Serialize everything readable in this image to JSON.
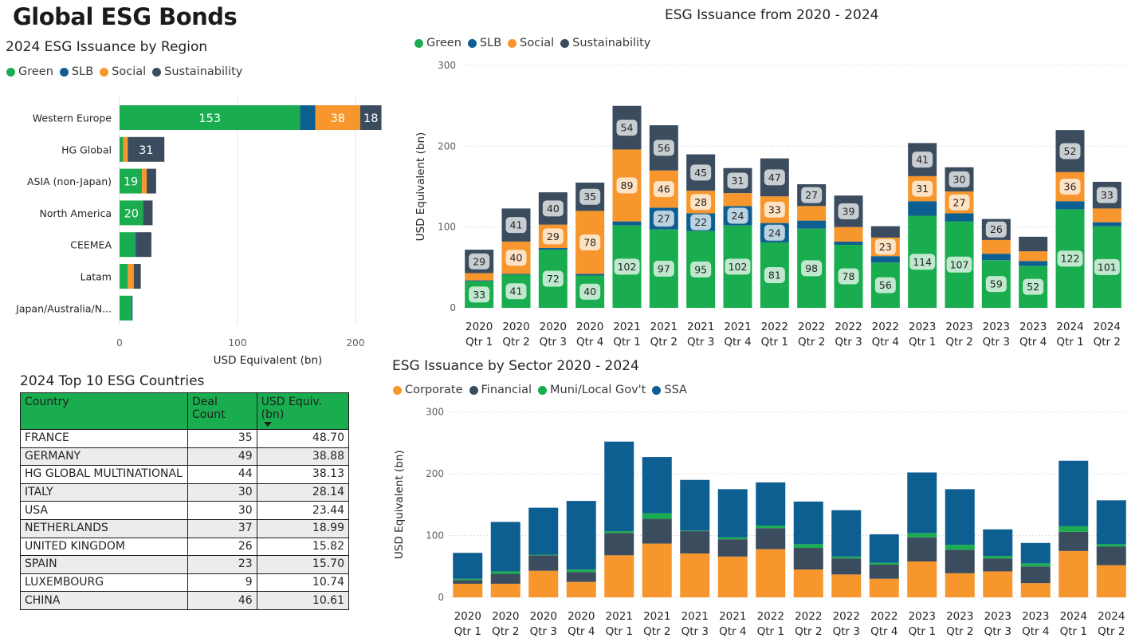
{
  "page": {
    "title": "Global ESG Bonds"
  },
  "colors": {
    "green": "#1aad4f",
    "slb": "#0e5f91",
    "social": "#f7962c",
    "sustainability": "#3b4c5f",
    "ssa": "#0e5f91",
    "financial": "#3b4c5f",
    "muni": "#1aad4f",
    "corporate": "#f7962c",
    "table_header": "#1aad4f"
  },
  "region_chart": {
    "title": "2024 ESG Issuance by Region",
    "legend": [
      "Green",
      "SLB",
      "Social",
      "Sustainability"
    ],
    "xlabel": "USD Equivalent (bn)",
    "ticks": [
      "0",
      "100",
      "200"
    ]
  },
  "issuance_chart": {
    "title": "ESG Issuance from 2020 - 2024",
    "legend": [
      "Green",
      "SLB",
      "Social",
      "Sustainability"
    ],
    "ylabel": "USD Equivalent (bn)",
    "ticks": [
      "0",
      "100",
      "200",
      "300"
    ]
  },
  "sector_chart": {
    "title": "ESG Issuance by Sector 2020 - 2024",
    "legend": [
      "Corporate",
      "Financial",
      "Muni/Local Gov't",
      "SSA"
    ],
    "ylabel": "USD Equivalent (bn)",
    "ticks": [
      "0",
      "100",
      "200",
      "300"
    ]
  },
  "countries_table": {
    "title": "2024 Top 10 ESG Countries",
    "headers": [
      "Country",
      "Deal Count",
      "USD Equiv. (bn)"
    ],
    "sorted_by": "USD Equiv. (bn)",
    "rows": [
      [
        "FRANCE",
        "35",
        "48.70"
      ],
      [
        "GERMANY",
        "49",
        "38.88"
      ],
      [
        "HG GLOBAL MULTINATIONAL",
        "44",
        "38.13"
      ],
      [
        "ITALY",
        "30",
        "28.14"
      ],
      [
        "USA",
        "30",
        "23.44"
      ],
      [
        "NETHERLANDS",
        "37",
        "18.99"
      ],
      [
        "UNITED KINGDOM",
        "26",
        "15.82"
      ],
      [
        "SPAIN",
        "23",
        "15.70"
      ],
      [
        "LUXEMBOURG",
        "9",
        "10.74"
      ],
      [
        "CHINA",
        "46",
        "10.61"
      ]
    ]
  },
  "chart_data": [
    {
      "type": "bar",
      "orientation": "horizontal-stacked",
      "title": "2024 ESG Issuance by Region",
      "xlabel": "USD Equivalent (bn)",
      "xlim": [
        0,
        220
      ],
      "categories": [
        "Western Europe",
        "HG Global",
        "ASIA (non-Japan)",
        "North America",
        "CEEMEA",
        "Latam",
        "Japan/Australia/N..."
      ],
      "series": [
        {
          "name": "Green",
          "values": [
            153,
            3,
            19,
            20,
            13,
            7,
            10
          ]
        },
        {
          "name": "SLB",
          "values": [
            13,
            0,
            0,
            0,
            1,
            0,
            1
          ]
        },
        {
          "name": "Social",
          "values": [
            38,
            4,
            4,
            0,
            0,
            5,
            0
          ]
        },
        {
          "name": "Sustainability",
          "values": [
            18,
            31,
            8,
            8,
            13,
            6,
            0
          ]
        }
      ],
      "data_labels": [
        [
          "153",
          "",
          "38",
          "18"
        ],
        [
          "",
          "",
          "",
          "31"
        ],
        [
          "19",
          "",
          "",
          ""
        ],
        [
          "20",
          "",
          "",
          ""
        ],
        [
          "",
          "",
          "",
          ""
        ],
        [
          "",
          "",
          "",
          ""
        ],
        [
          "",
          "",
          "",
          ""
        ]
      ]
    },
    {
      "type": "bar",
      "orientation": "vertical-stacked",
      "title": "ESG Issuance from 2020 - 2024",
      "ylabel": "USD Equivalent (bn)",
      "ylim": [
        0,
        300
      ],
      "categories": [
        [
          "2020",
          "Qtr 1"
        ],
        [
          "2020",
          "Qtr 2"
        ],
        [
          "2020",
          "Qtr 3"
        ],
        [
          "2020",
          "Qtr 4"
        ],
        [
          "2021",
          "Qtr 1"
        ],
        [
          "2021",
          "Qtr 2"
        ],
        [
          "2021",
          "Qtr 3"
        ],
        [
          "2021",
          "Qtr 4"
        ],
        [
          "2022",
          "Qtr 1"
        ],
        [
          "2022",
          "Qtr 2"
        ],
        [
          "2022",
          "Qtr 3"
        ],
        [
          "2022",
          "Qtr 4"
        ],
        [
          "2023",
          "Qtr 1"
        ],
        [
          "2023",
          "Qtr 2"
        ],
        [
          "2023",
          "Qtr 3"
        ],
        [
          "2023",
          "Qtr 4"
        ],
        [
          "2024",
          "Qtr 1"
        ],
        [
          "2024",
          "Qtr 2"
        ]
      ],
      "series": [
        {
          "name": "Green",
          "values": [
            33,
            41,
            72,
            40,
            102,
            97,
            95,
            102,
            81,
            98,
            78,
            56,
            114,
            107,
            59,
            52,
            122,
            101
          ]
        },
        {
          "name": "SLB",
          "values": [
            1,
            1,
            2,
            2,
            5,
            27,
            22,
            24,
            24,
            10,
            4,
            8,
            18,
            10,
            8,
            6,
            10,
            5
          ]
        },
        {
          "name": "Social",
          "values": [
            9,
            40,
            29,
            78,
            89,
            46,
            28,
            16,
            33,
            18,
            18,
            23,
            31,
            27,
            17,
            12,
            36,
            17
          ]
        },
        {
          "name": "Sustainability",
          "values": [
            29,
            41,
            40,
            35,
            54,
            56,
            45,
            31,
            47,
            27,
            39,
            14,
            41,
            30,
            26,
            18,
            52,
            33
          ]
        }
      ],
      "data_labels": {
        "Green": [
          "33",
          "41",
          "72",
          "40",
          "102",
          "97",
          "95",
          "102",
          "81",
          "98",
          "78",
          "56",
          "114",
          "107",
          "59",
          "52",
          "122",
          "101"
        ],
        "SLB": [
          "",
          "",
          "",
          "",
          "",
          "27",
          "22",
          "24",
          "24",
          "",
          "",
          "",
          "",
          "",
          "",
          "",
          "",
          ""
        ],
        "Social": [
          "",
          "40",
          "29",
          "78",
          "89",
          "46",
          "28",
          "",
          "33",
          "",
          "",
          "23",
          "31",
          "27",
          "",
          "",
          "36",
          ""
        ],
        "Sustainability": [
          "29",
          "41",
          "40",
          "35",
          "54",
          "56",
          "45",
          "31",
          "47",
          "27",
          "39",
          "",
          "41",
          "30",
          "26",
          "",
          "52",
          "33"
        ]
      }
    },
    {
      "type": "bar",
      "orientation": "vertical-stacked",
      "title": "ESG Issuance by Sector 2020 - 2024",
      "ylabel": "USD Equivalent (bn)",
      "ylim": [
        0,
        300
      ],
      "categories": [
        [
          "2020",
          "Qtr 1"
        ],
        [
          "2020",
          "Qtr 2"
        ],
        [
          "2020",
          "Qtr 3"
        ],
        [
          "2020",
          "Qtr 4"
        ],
        [
          "2021",
          "Qtr 1"
        ],
        [
          "2021",
          "Qtr 2"
        ],
        [
          "2021",
          "Qtr 3"
        ],
        [
          "2021",
          "Qtr 4"
        ],
        [
          "2022",
          "Qtr 1"
        ],
        [
          "2022",
          "Qtr 2"
        ],
        [
          "2022",
          "Qtr 3"
        ],
        [
          "2022",
          "Qtr 4"
        ],
        [
          "2023",
          "Qtr 1"
        ],
        [
          "2023",
          "Qtr 2"
        ],
        [
          "2023",
          "Qtr 3"
        ],
        [
          "2023",
          "Qtr 4"
        ],
        [
          "2024",
          "Qtr 1"
        ],
        [
          "2024",
          "Qtr 2"
        ]
      ],
      "series": [
        {
          "name": "Corporate",
          "values": [
            22,
            22,
            43,
            25,
            68,
            87,
            71,
            66,
            78,
            45,
            37,
            30,
            58,
            39,
            42,
            23,
            75,
            52
          ]
        },
        {
          "name": "Financial",
          "values": [
            6,
            16,
            25,
            16,
            36,
            40,
            36,
            28,
            34,
            35,
            26,
            23,
            39,
            38,
            21,
            27,
            31,
            30
          ]
        },
        {
          "name": "Muni/Local Gov't",
          "values": [
            2,
            4,
            1,
            4,
            3,
            9,
            1,
            3,
            4,
            6,
            3,
            3,
            7,
            8,
            4,
            5,
            9,
            4
          ]
        },
        {
          "name": "SSA",
          "values": [
            42,
            80,
            76,
            111,
            145,
            91,
            82,
            78,
            70,
            69,
            75,
            46,
            98,
            90,
            43,
            33,
            106,
            71
          ]
        }
      ]
    }
  ]
}
